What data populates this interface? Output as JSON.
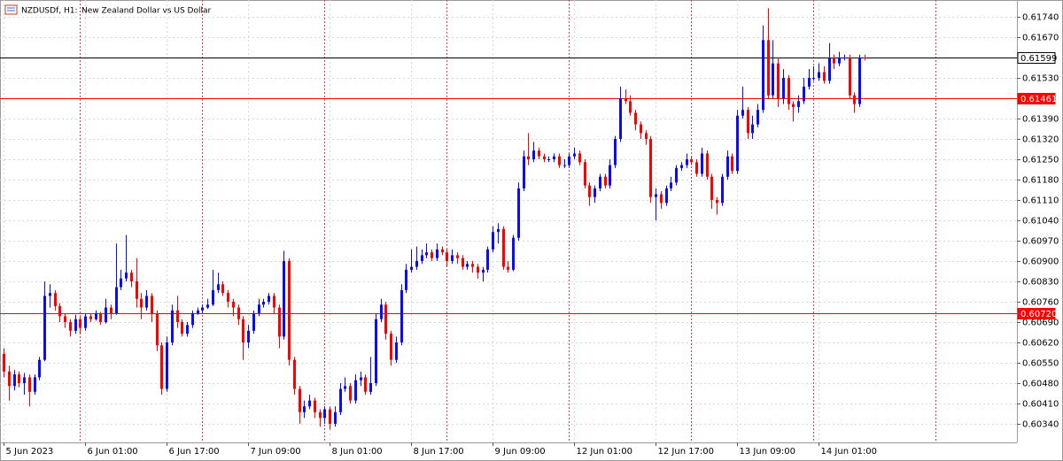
{
  "chart_data": {
    "type": "candlestick",
    "symbol": "NZDUSDf, H1:",
    "title": "New Zealand Dollar vs US Dollar",
    "up_color": "#0a0aff",
    "down_color": "#ff0000",
    "grid": true,
    "ylim": [
      0.60276,
      0.61798
    ],
    "xlim": [
      -0.7,
      198.95
    ],
    "yticks": [
      {
        "value": 0.6174,
        "label": "0.61740"
      },
      {
        "value": 0.6167,
        "label": "0.61670"
      },
      {
        "value": 0.6153,
        "label": "0.61530"
      },
      {
        "value": 0.6139,
        "label": "0.61390"
      },
      {
        "value": 0.6132,
        "label": "0.61320"
      },
      {
        "value": 0.6125,
        "label": "0.61250"
      },
      {
        "value": 0.6118,
        "label": "0.61180"
      },
      {
        "value": 0.6111,
        "label": "0.61110"
      },
      {
        "value": 0.6104,
        "label": "0.61040"
      },
      {
        "value": 0.6097,
        "label": "0.60970"
      },
      {
        "value": 0.609,
        "label": "0.60900"
      },
      {
        "value": 0.6083,
        "label": "0.60830"
      },
      {
        "value": 0.6076,
        "label": "0.60760"
      },
      {
        "value": 0.6069,
        "label": "0.60690"
      },
      {
        "value": 0.6062,
        "label": "0.60620"
      },
      {
        "value": 0.6055,
        "label": "0.60550"
      },
      {
        "value": 0.6048,
        "label": "0.60480"
      },
      {
        "value": 0.6041,
        "label": "0.60410"
      },
      {
        "value": 0.6034,
        "label": "0.60340"
      }
    ],
    "xticks": [
      {
        "value": 0,
        "label": "5 Jun 2023"
      },
      {
        "value": 16,
        "label": "6 Jun 01:00"
      },
      {
        "value": 32,
        "label": "6 Jun 17:00"
      },
      {
        "value": 48,
        "label": "7 Jun 09:00"
      },
      {
        "value": 64,
        "label": "8 Jun 01:00"
      },
      {
        "value": 80,
        "label": "8 Jun 17:00"
      },
      {
        "value": 96,
        "label": "9 Jun 09:00"
      },
      {
        "value": 112,
        "label": "12 Jun 01:00"
      },
      {
        "value": 128,
        "label": "12 Jun 17:00"
      },
      {
        "value": 144,
        "label": "13 Jun 09:00"
      },
      {
        "value": 160,
        "label": "14 Jun 01:00"
      }
    ],
    "separators": [
      15,
      39,
      63,
      87,
      111,
      135,
      159,
      183
    ],
    "price_lines": [
      {
        "value": 0.61599,
        "label": "0.61599",
        "color": "#000000"
      },
      {
        "value": 0.61461,
        "label": "0.61461",
        "color": "#ff0000"
      },
      {
        "value": 0.6072,
        "label": "0.60720",
        "color": "#ff0000"
      }
    ],
    "candles": [
      [
        0.60581,
        0.606,
        0.605,
        0.6052
      ],
      [
        0.6052,
        0.6054,
        0.6042,
        0.6047
      ],
      [
        0.6047,
        0.60525,
        0.60455,
        0.6051
      ],
      [
        0.6051,
        0.6052,
        0.60465,
        0.6048
      ],
      [
        0.6048,
        0.60515,
        0.6044,
        0.605
      ],
      [
        0.605,
        0.6051,
        0.604,
        0.6045
      ],
      [
        0.6045,
        0.6051,
        0.6044,
        0.605
      ],
      [
        0.605,
        0.6057,
        0.6049,
        0.6056
      ],
      [
        0.6056,
        0.6083,
        0.60555,
        0.6078
      ],
      [
        0.6078,
        0.6082,
        0.6074,
        0.6079
      ],
      [
        0.6079,
        0.608,
        0.6073,
        0.60745
      ],
      [
        0.60745,
        0.60755,
        0.6069,
        0.6071
      ],
      [
        0.6071,
        0.6072,
        0.6067,
        0.6069
      ],
      [
        0.6069,
        0.607,
        0.6064,
        0.6066
      ],
      [
        0.6066,
        0.60715,
        0.6065,
        0.607
      ],
      [
        0.607,
        0.6071,
        0.6065,
        0.6067
      ],
      [
        0.6067,
        0.6072,
        0.6066,
        0.6071
      ],
      [
        0.6071,
        0.6072,
        0.6069,
        0.607
      ],
      [
        0.607,
        0.6073,
        0.60695,
        0.6072
      ],
      [
        0.6072,
        0.60725,
        0.6068,
        0.6069
      ],
      [
        0.6069,
        0.6077,
        0.60685,
        0.6074
      ],
      [
        0.6074,
        0.6075,
        0.607,
        0.6072
      ],
      [
        0.6072,
        0.6096,
        0.60715,
        0.6081
      ],
      [
        0.6081,
        0.6087,
        0.608,
        0.6084
      ],
      [
        0.6084,
        0.6099,
        0.6083,
        0.6086
      ],
      [
        0.6086,
        0.6087,
        0.6081,
        0.6083
      ],
      [
        0.6083,
        0.6091,
        0.6074,
        0.6077
      ],
      [
        0.6077,
        0.6079,
        0.607,
        0.6074
      ],
      [
        0.6074,
        0.608,
        0.6073,
        0.6078
      ],
      [
        0.6078,
        0.6079,
        0.6069,
        0.6072
      ],
      [
        0.6072,
        0.6073,
        0.6059,
        0.6061
      ],
      [
        0.6061,
        0.6062,
        0.6044,
        0.6046
      ],
      [
        0.6046,
        0.6064,
        0.6045,
        0.6062
      ],
      [
        0.6062,
        0.6075,
        0.6061,
        0.6073
      ],
      [
        0.6073,
        0.6078,
        0.6067,
        0.6069
      ],
      [
        0.6069,
        0.607,
        0.6064,
        0.6065
      ],
      [
        0.6065,
        0.6069,
        0.6064,
        0.6068
      ],
      [
        0.6068,
        0.6073,
        0.6067,
        0.6072
      ],
      [
        0.6072,
        0.6074,
        0.60715,
        0.6073
      ],
      [
        0.6073,
        0.6075,
        0.6072,
        0.6074
      ],
      [
        0.6074,
        0.6077,
        0.60735,
        0.6075
      ],
      [
        0.6075,
        0.6087,
        0.60745,
        0.608
      ],
      [
        0.608,
        0.6086,
        0.6079,
        0.6082
      ],
      [
        0.6082,
        0.6083,
        0.6078,
        0.6079
      ],
      [
        0.6079,
        0.608,
        0.6074,
        0.6076
      ],
      [
        0.6076,
        0.6077,
        0.6071,
        0.6074
      ],
      [
        0.6074,
        0.6075,
        0.6068,
        0.607
      ],
      [
        0.607,
        0.6071,
        0.6056,
        0.6062
      ],
      [
        0.6062,
        0.6068,
        0.606,
        0.6066
      ],
      [
        0.6066,
        0.6073,
        0.6065,
        0.6072
      ],
      [
        0.6072,
        0.6077,
        0.6071,
        0.6075
      ],
      [
        0.6075,
        0.6077,
        0.6074,
        0.6076
      ],
      [
        0.6076,
        0.6079,
        0.6075,
        0.6078
      ],
      [
        0.6078,
        0.6079,
        0.6072,
        0.6074
      ],
      [
        0.6074,
        0.6075,
        0.606,
        0.6064
      ],
      [
        0.6064,
        0.60935,
        0.6063,
        0.609
      ],
      [
        0.609,
        0.6091,
        0.6054,
        0.6056
      ],
      [
        0.6056,
        0.6057,
        0.6044,
        0.6046
      ],
      [
        0.6046,
        0.6047,
        0.6034,
        0.6038
      ],
      [
        0.6038,
        0.6042,
        0.6036,
        0.604
      ],
      [
        0.604,
        0.6044,
        0.6039,
        0.6042
      ],
      [
        0.6042,
        0.6043,
        0.6036,
        0.6038
      ],
      [
        0.6038,
        0.6039,
        0.6033,
        0.6036
      ],
      [
        0.6036,
        0.604,
        0.6034,
        0.6039
      ],
      [
        0.6039,
        0.604,
        0.6032,
        0.6034
      ],
      [
        0.6034,
        0.604,
        0.6033,
        0.6038
      ],
      [
        0.6038,
        0.6048,
        0.6037,
        0.6046
      ],
      [
        0.6046,
        0.605,
        0.6045,
        0.6047
      ],
      [
        0.6047,
        0.6048,
        0.6041,
        0.6042
      ],
      [
        0.6042,
        0.6051,
        0.6041,
        0.6049
      ],
      [
        0.6049,
        0.6052,
        0.6047,
        0.605
      ],
      [
        0.605,
        0.6051,
        0.6044,
        0.6045
      ],
      [
        0.6045,
        0.6057,
        0.6044,
        0.6048
      ],
      [
        0.6048,
        0.6072,
        0.6047,
        0.607
      ],
      [
        0.607,
        0.6077,
        0.6069,
        0.6075
      ],
      [
        0.6075,
        0.6076,
        0.6063,
        0.6065
      ],
      [
        0.6065,
        0.6066,
        0.6054,
        0.6056
      ],
      [
        0.6056,
        0.6064,
        0.6055,
        0.6062
      ],
      [
        0.6062,
        0.6082,
        0.6061,
        0.608
      ],
      [
        0.608,
        0.6089,
        0.6079,
        0.6087
      ],
      [
        0.6087,
        0.6094,
        0.6086,
        0.6088
      ],
      [
        0.6088,
        0.6095,
        0.6087,
        0.609
      ],
      [
        0.609,
        0.6094,
        0.6089,
        0.6092
      ],
      [
        0.6092,
        0.6096,
        0.6091,
        0.6093
      ],
      [
        0.6093,
        0.6094,
        0.609,
        0.6091
      ],
      [
        0.6091,
        0.6096,
        0.609,
        0.6094
      ],
      [
        0.6094,
        0.6095,
        0.6092,
        0.6093
      ],
      [
        0.6093,
        0.6094,
        0.6088,
        0.609
      ],
      [
        0.609,
        0.6094,
        0.6089,
        0.6092
      ],
      [
        0.6092,
        0.6093,
        0.6089,
        0.6091
      ],
      [
        0.6091,
        0.6092,
        0.6087,
        0.6088
      ],
      [
        0.6088,
        0.609,
        0.6087,
        0.6089
      ],
      [
        0.6089,
        0.609,
        0.6086,
        0.6088
      ],
      [
        0.6088,
        0.6089,
        0.6084,
        0.6086
      ],
      [
        0.6086,
        0.6088,
        0.6083,
        0.6087
      ],
      [
        0.6087,
        0.6095,
        0.6086,
        0.6094
      ],
      [
        0.6094,
        0.6102,
        0.6093,
        0.61
      ],
      [
        0.61,
        0.6103,
        0.6096,
        0.6101
      ],
      [
        0.6101,
        0.6102,
        0.6087,
        0.6088
      ],
      [
        0.6088,
        0.609,
        0.6086,
        0.6087
      ],
      [
        0.6087,
        0.6099,
        0.60865,
        0.6098
      ],
      [
        0.6098,
        0.6117,
        0.6097,
        0.6115
      ],
      [
        0.6115,
        0.6128,
        0.6114,
        0.6126
      ],
      [
        0.6126,
        0.6134,
        0.6123,
        0.6125
      ],
      [
        0.6125,
        0.6131,
        0.6124,
        0.6128
      ],
      [
        0.6128,
        0.6129,
        0.6125,
        0.6126
      ],
      [
        0.6126,
        0.6127,
        0.6124,
        0.6125
      ],
      [
        0.6125,
        0.6126,
        0.6124,
        0.6125
      ],
      [
        0.6125,
        0.6127,
        0.6124,
        0.6126
      ],
      [
        0.6126,
        0.6127,
        0.6122,
        0.6123
      ],
      [
        0.6123,
        0.6125,
        0.6122,
        0.6123
      ],
      [
        0.6123,
        0.6127,
        0.6122,
        0.6126
      ],
      [
        0.6126,
        0.6129,
        0.6125,
        0.6127
      ],
      [
        0.6127,
        0.6128,
        0.6123,
        0.6124
      ],
      [
        0.6124,
        0.6125,
        0.6115,
        0.6116
      ],
      [
        0.6116,
        0.6117,
        0.6109,
        0.6112
      ],
      [
        0.6112,
        0.6116,
        0.611,
        0.6115
      ],
      [
        0.6115,
        0.612,
        0.6114,
        0.6119
      ],
      [
        0.6119,
        0.612,
        0.6115,
        0.6116
      ],
      [
        0.6116,
        0.6125,
        0.6115,
        0.6123
      ],
      [
        0.6123,
        0.6133,
        0.6122,
        0.6132
      ],
      [
        0.6132,
        0.615,
        0.6131,
        0.6146
      ],
      [
        0.6146,
        0.6149,
        0.6144,
        0.6145
      ],
      [
        0.6145,
        0.6147,
        0.614,
        0.6141
      ],
      [
        0.6141,
        0.6142,
        0.6135,
        0.6137
      ],
      [
        0.6137,
        0.6138,
        0.6132,
        0.6134
      ],
      [
        0.6134,
        0.6135,
        0.613,
        0.6132
      ],
      [
        0.6132,
        0.6133,
        0.611,
        0.6112
      ],
      [
        0.6112,
        0.6115,
        0.6104,
        0.6113
      ],
      [
        0.6113,
        0.6114,
        0.6108,
        0.611
      ],
      [
        0.611,
        0.6116,
        0.6109,
        0.6115
      ],
      [
        0.6115,
        0.6119,
        0.6114,
        0.6117
      ],
      [
        0.6117,
        0.6123,
        0.6116,
        0.6122
      ],
      [
        0.6122,
        0.6124,
        0.6121,
        0.6123
      ],
      [
        0.6123,
        0.6127,
        0.6122,
        0.6125
      ],
      [
        0.6125,
        0.6126,
        0.6123,
        0.6124
      ],
      [
        0.6124,
        0.6125,
        0.6119,
        0.612
      ],
      [
        0.612,
        0.6129,
        0.6119,
        0.6127
      ],
      [
        0.6127,
        0.6128,
        0.6118,
        0.6119
      ],
      [
        0.6119,
        0.612,
        0.6108,
        0.6111
      ],
      [
        0.6111,
        0.6112,
        0.6106,
        0.611
      ],
      [
        0.611,
        0.612,
        0.6109,
        0.6119
      ],
      [
        0.6119,
        0.6128,
        0.6118,
        0.6126
      ],
      [
        0.6126,
        0.6127,
        0.612,
        0.6121
      ],
      [
        0.6121,
        0.6142,
        0.612,
        0.614
      ],
      [
        0.614,
        0.615,
        0.6139,
        0.6142
      ],
      [
        0.6142,
        0.6143,
        0.6132,
        0.6134
      ],
      [
        0.6134,
        0.614,
        0.6132,
        0.6137
      ],
      [
        0.6137,
        0.6144,
        0.6136,
        0.6142
      ],
      [
        0.6142,
        0.6171,
        0.6141,
        0.6166
      ],
      [
        0.6166,
        0.6177,
        0.6146,
        0.6147
      ],
      [
        0.6147,
        0.6166,
        0.6146,
        0.6158
      ],
      [
        0.6158,
        0.616,
        0.6143,
        0.6146
      ],
      [
        0.6146,
        0.6156,
        0.6144,
        0.6153
      ],
      [
        0.6153,
        0.6154,
        0.6142,
        0.6144
      ],
      [
        0.6144,
        0.6145,
        0.6138,
        0.6143
      ],
      [
        0.6143,
        0.6147,
        0.6141,
        0.6145
      ],
      [
        0.6145,
        0.6153,
        0.6144,
        0.615
      ],
      [
        0.615,
        0.6156,
        0.6149,
        0.6153
      ],
      [
        0.6153,
        0.6157,
        0.6152,
        0.6153
      ],
      [
        0.6153,
        0.6158,
        0.6152,
        0.6155
      ],
      [
        0.6155,
        0.6157,
        0.6151,
        0.6152
      ],
      [
        0.6152,
        0.6165,
        0.6151,
        0.616
      ],
      [
        0.616,
        0.6161,
        0.6156,
        0.6158
      ],
      [
        0.6158,
        0.6162,
        0.6157,
        0.616
      ],
      [
        0.616,
        0.6161,
        0.6159,
        0.616
      ],
      [
        0.616,
        0.6161,
        0.6146,
        0.6147
      ],
      [
        0.6147,
        0.6148,
        0.6141,
        0.6144
      ],
      [
        0.6144,
        0.6161,
        0.6143,
        0.616
      ],
      [
        0.616,
        0.6161,
        0.6159,
        0.61599
      ]
    ]
  }
}
